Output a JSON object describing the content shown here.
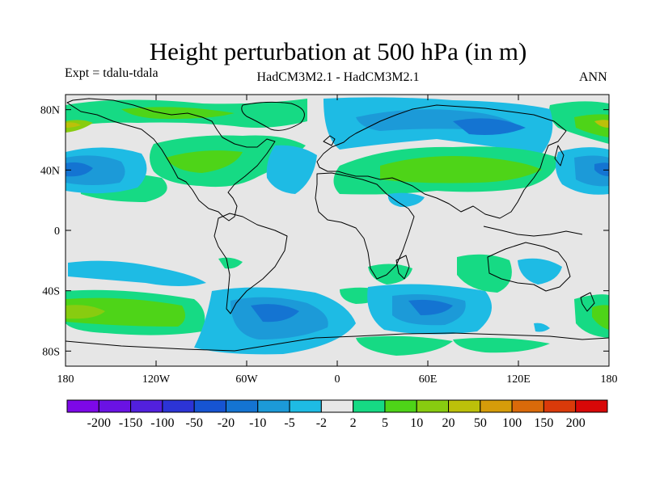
{
  "plot": {
    "title": "Height perturbation at 500 hPa (in m)",
    "experiment": "Expt = tdalu-tdala",
    "models": "HadCM3M2.1 - HadCM3M2.1",
    "season": "ANN"
  },
  "chart_data": {
    "type": "map-contour",
    "variable": "geopotential height perturbation",
    "level": "500 hPa",
    "units": "m",
    "x_range": [
      -180,
      180
    ],
    "y_range": [
      -90,
      90
    ],
    "x_ticks": [
      "180",
      "120W",
      "60W",
      "0",
      "60E",
      "120E",
      "180"
    ],
    "y_ticks": [
      "80N",
      "40N",
      "0",
      "40S",
      "80S"
    ],
    "colorbar": {
      "levels": [
        "-200",
        "-150",
        "-100",
        "-50",
        "-20",
        "-10",
        "-5",
        "-2",
        "2",
        "5",
        "10",
        "20",
        "50",
        "100",
        "150",
        "200"
      ],
      "colors": [
        "#7d08e8",
        "#6a12e4",
        "#5220de",
        "#2c34d6",
        "#1654d2",
        "#1474d2",
        "#1c9ad8",
        "#1ebbe4",
        "#e6e6e6",
        "#16da84",
        "#4ed418",
        "#88cc10",
        "#bcc00a",
        "#d69c0a",
        "#da6a0a",
        "#da3a0a",
        "#d80808"
      ]
    },
    "background_color": "#e6e6e6"
  }
}
